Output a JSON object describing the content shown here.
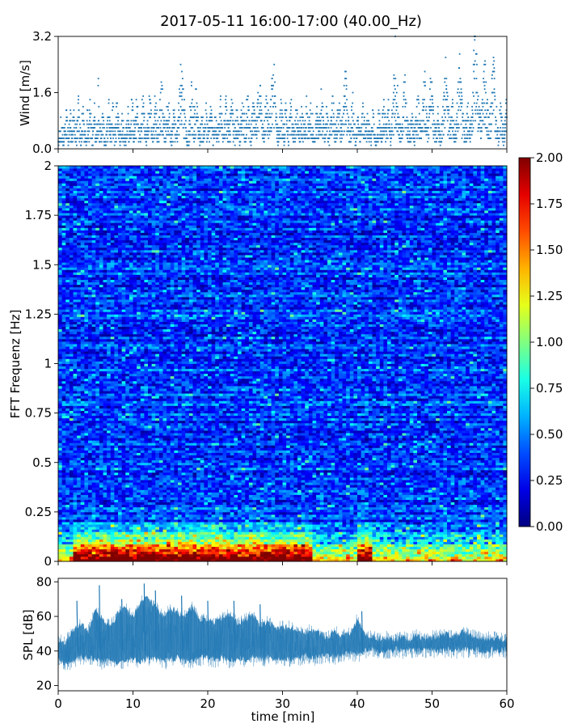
{
  "chart_data": [
    {
      "id": "wind",
      "type": "scatter",
      "title": "2017-05-11 16:00-17:00 (40.00_Hz)",
      "xlabel": "",
      "ylabel": "Wind [m/s]",
      "xlim": [
        0,
        60
      ],
      "ylim": [
        0,
        3.2
      ],
      "yticks": [
        0.0,
        1.6,
        3.2
      ],
      "ytick_labels": [
        "0.0",
        "1.6",
        "3.2"
      ],
      "xticks": [
        0,
        10,
        20,
        30,
        40,
        50,
        60
      ],
      "marker_color": "#1f77b4",
      "series": [
        {
          "x_start": 0,
          "x_end": 60,
          "resolution": 0.1,
          "values": [
            0.2,
            0.5,
            0.3,
            0.8,
            0.4,
            0.6,
            0.9,
            0.5,
            0.3,
            0.7,
            0.6,
            0.4,
            1.0,
            0.8,
            0.5,
            0.3,
            0.6,
            0.9,
            1.1,
            0.7,
            0.5,
            0.4,
            0.8,
            1.2,
            0.9,
            0.6,
            0.3,
            0.5,
            0.7,
            0.9,
            1.3,
            1.0,
            0.7,
            0.5,
            0.4,
            0.6,
            0.8,
            1.1,
            0.9,
            0.6,
            0.5,
            0.3,
            0.4,
            0.7,
            1.0,
            0.8,
            0.6,
            1.2,
            1.4,
            0.9,
            0.6,
            0.4,
            0.5,
            0.8,
            1.1,
            0.9,
            0.7,
            0.5,
            0.6,
            1.0,
            1.9,
            1.2,
            0.8,
            0.6,
            0.5,
            0.7,
            0.9,
            1.0,
            0.8,
            0.5,
            0.3,
            0.2,
            0.4,
            0.6,
            0.8,
            1.0,
            1.2,
            0.9,
            0.6,
            0.5,
            0.7,
            1.1,
            1.3,
            1.0,
            0.7,
            0.5,
            0.6,
            0.9,
            1.2,
            1.4,
            1.1,
            0.8,
            0.6,
            0.4,
            0.5,
            0.7,
            0.9,
            1.1,
            0.8,
            0.6,
            0.4,
            0.3,
            0.5,
            0.7,
            0.9,
            1.0,
            0.8,
            0.6,
            0.5,
            0.7,
            1.0,
            1.3,
            1.1,
            0.8,
            0.6,
            0.5,
            0.7,
            0.9,
            1.2,
            1.4,
            1.1,
            0.8,
            0.6,
            0.4,
            0.5,
            0.7,
            1.0,
            1.3,
            1.5,
            1.2,
            0.9,
            0.7,
            0.5,
            0.4,
            0.6,
            0.8,
            1.1,
            1.4,
            1.6,
            1.3,
            1.0,
            0.8,
            0.6,
            0.5,
            0.7,
            1.0,
            1.3,
            1.5,
            1.2,
            0.9,
            0.7,
            0.6,
            0.8,
            1.1,
            1.4,
            1.7,
            1.9,
            1.6,
            1.3,
            1.0,
            0.8,
            0.6,
            0.5,
            0.7,
            1.0,
            1.2,
            1.4,
            1.1,
            0.9,
            0.7,
            0.5,
            0.4,
            0.6,
            0.8,
            1.0,
            1.2,
            0.9,
            0.7,
            0.6,
            0.5,
            0.7,
            0.9,
            1.2,
            1.5,
            1.8,
            2.1,
            2.6,
            2.3,
            1.9,
            1.6,
            1.3,
            1.1,
            0.9,
            0.7,
            0.5,
            0.3,
            0.2,
            0.4,
            0.7,
            1.0,
            1.3,
            1.6,
            1.4,
            1.1,
            0.9,
            0.8,
            1.0,
            1.3,
            1.6,
            1.3,
            1.1,
            0.9,
            0.7,
            0.5,
            0.4,
            0.6,
            0.8,
            1.0,
            0.8,
            0.6,
            0.5,
            0.7,
            0.9,
            1.1,
            0.9,
            0.7,
            0.5,
            0.6,
            0.8,
            1.0,
            1.2,
            1.0,
            0.8,
            0.6,
            0.5,
            0.6,
            0.8,
            1.0,
            0.9,
            0.7,
            0.5,
            0.4,
            0.6,
            0.8,
            1.0,
            1.3,
            1.1,
            0.9,
            0.7,
            0.6,
            0.8,
            1.0,
            1.2,
            1.4,
            1.2,
            1.0,
            0.8,
            0.6,
            0.5,
            0.7,
            0.9,
            1.1,
            1.3,
            1.1,
            0.9,
            0.7,
            0.6,
            0.5,
            0.7,
            0.9,
            1.0,
            0.8,
            0.6,
            0.5,
            0.4,
            0.6,
            0.8,
            1.0,
            1.2,
            1.4,
            1.2,
            1.0,
            0.8,
            0.7,
            0.9,
            1.2,
            1.5,
            1.3,
            1.0,
            0.8,
            0.6,
            0.5,
            0.7,
            0.9,
            1.1,
            1.3,
            1.1,
            0.9,
            0.7,
            0.6,
            0.8,
            1.1,
            1.4,
            1.8,
            2.0,
            1.7,
            1.4,
            1.2,
            1.0,
            0.8,
            0.6,
            0.7,
            0.9,
            1.1,
            1.3,
            1.5,
            1.2,
            1.0,
            0.8,
            0.7,
            0.9,
            1.2,
            1.5,
            1.8,
            2.0,
            2.4,
            2.1,
            1.7,
            1.4,
            1.1,
            0.9,
            0.7,
            0.5,
            0.4,
            0.6,
            0.8,
            1.0,
            1.2,
            1.0,
            0.8,
            0.6,
            0.5,
            0.7,
            0.9,
            1.1,
            0.9,
            0.7,
            0.6,
            0.5,
            0.7,
            0.9,
            1.2,
            1.4,
            1.2,
            1.0,
            0.8,
            0.6,
            0.5,
            0.7,
            0.9,
            1.1,
            0.9,
            0.7,
            0.5,
            0.4,
            0.6,
            0.8,
            1.0,
            1.2,
            1.0,
            0.8,
            0.6,
            0.5,
            0.7,
            1.0,
            1.3,
            1.1,
            0.9,
            0.7,
            0.6,
            0.8,
            1.0,
            1.2,
            1.0,
            0.8,
            0.6,
            0.4,
            0.3,
            0.5,
            0.7,
            0.9,
            1.1,
            0.9,
            0.7,
            0.6,
            0.8,
            1.0,
            1.3,
            1.5,
            1.2,
            1.0,
            0.8,
            0.6,
            0.5,
            0.7,
            0.9,
            1.1,
            0.9,
            0.7,
            0.5,
            0.4,
            0.6,
            0.8,
            1.0,
            1.2,
            1.4,
            1.2,
            1.0,
            0.8,
            0.6,
            0.5,
            0.7,
            0.9,
            1.1,
            1.3,
            1.1,
            0.9,
            0.7,
            0.6,
            0.8,
            1.0,
            1.2,
            1.5,
            1.8,
            2.1,
            1.8,
            1.5,
            1.2,
            1.0,
            0.8,
            0.6,
            0.5,
            0.7,
            0.9,
            1.1,
            1.3,
            1.1,
            0.9,
            0.7,
            0.5,
            0.4,
            0.6,
            0.8,
            1.0,
            0.8,
            0.6,
            0.5,
            0.4,
            0.6,
            0.8,
            1.0,
            1.2,
            1.0,
            0.8,
            0.6,
            0.5,
            0.7,
            0.9,
            1.1,
            0.9,
            0.7,
            0.6,
            0.5,
            0.4,
            0.6,
            0.8,
            1.0,
            0.9,
            0.7,
            0.5,
            0.3,
            0.2,
            0.4,
            0.6,
            0.8,
            1.0,
            0.8,
            0.6,
            0.5,
            0.7,
            0.9,
            1.1,
            1.3,
            1.1,
            0.9,
            0.7,
            0.6,
            0.8,
            1.0,
            1.2,
            1.0,
            0.8,
            0.6,
            0.5,
            0.7,
            0.9,
            1.2,
            1.5,
            1.8,
            2.2,
            2.8,
            2.3,
            1.8,
            1.5,
            1.2,
            1.0,
            0.8,
            0.6,
            0.5,
            0.7,
            0.9,
            1.1,
            1.4,
            1.7,
            2.0,
            1.7,
            1.4,
            1.1,
            0.9,
            0.7,
            0.5,
            0.4,
            0.6,
            0.8,
            1.0,
            1.2,
            1.0,
            0.8,
            0.6,
            0.5,
            0.7,
            0.9,
            1.1,
            1.3,
            1.5,
            1.3,
            1.1,
            0.9,
            0.7,
            0.6,
            0.8,
            1.0,
            1.3,
            1.6,
            1.9,
            1.6,
            1.3,
            1.1,
            0.9,
            0.8,
            1.0,
            1.2,
            1.5,
            1.8,
            2.0,
            1.7,
            1.4,
            1.2,
            1.0,
            0.8,
            0.6,
            0.5,
            0.7,
            0.9,
            1.1,
            0.9,
            0.7,
            0.5,
            0.4,
            0.6,
            0.8,
            1.0,
            1.2,
            1.4,
            1.6,
            1.9,
            2.3,
            1.9,
            1.6,
            1.3,
            1.1,
            0.9,
            0.7,
            0.6,
            0.8,
            1.0,
            1.2,
            1.0,
            0.8,
            0.6,
            0.5,
            0.7,
            0.9,
            1.1,
            1.4,
            1.7,
            2.0,
            2.4,
            2.1,
            1.7,
            1.4,
            1.2,
            1.0,
            0.8,
            0.6,
            0.5,
            0.7,
            0.9,
            1.1,
            1.3,
            1.1,
            0.9,
            0.7,
            0.6,
            0.8,
            1.0,
            1.3,
            1.6,
            2.0,
            2.4,
            2.7,
            3.1,
            2.8,
            2.4,
            2.0,
            1.7,
            1.4,
            1.2,
            1.0,
            0.8,
            0.9,
            1.1,
            1.4,
            1.7,
            2.1,
            2.5,
            2.2,
            1.8,
            1.5,
            1.2,
            1.0,
            0.8,
            0.7,
            0.9,
            1.1,
            1.4,
            1.8,
            2.2,
            2.6,
            2.2,
            1.8,
            1.5,
            1.2,
            1.0,
            0.8,
            0.6,
            0.5,
            0.7,
            0.9,
            1.1,
            1.3,
            1.0,
            0.8,
            0.6,
            0.5,
            0.7,
            0.9,
            1.2,
            1.5
          ]
        }
      ]
    },
    {
      "id": "spectrogram",
      "type": "heatmap",
      "xlabel": "",
      "ylabel": "FFT Frequenz [Hz]",
      "xlim": [
        0,
        60
      ],
      "ylim": [
        0,
        2
      ],
      "yticks": [
        0,
        0.25,
        0.5,
        0.75,
        1,
        1.25,
        1.5,
        1.75,
        2
      ],
      "ytick_labels": [
        "0",
        "0.25",
        "0.5",
        "0.75",
        "1",
        "1.25",
        "1.5",
        "1.75",
        "2"
      ],
      "xticks": [
        0,
        10,
        20,
        30,
        40,
        50,
        60
      ],
      "colormap": "jet",
      "colorbar": {
        "vmin": 0,
        "vmax": 2,
        "ticks": [
          0.0,
          0.25,
          0.5,
          0.75,
          1.0,
          1.25,
          1.5,
          1.75,
          2.0
        ],
        "tick_labels": [
          "0.00",
          "0.25",
          "0.50",
          "0.75",
          "1.00",
          "1.25",
          "1.50",
          "1.75",
          "2.00"
        ]
      },
      "time_bins": 120,
      "freq_bins": 160,
      "typical_level": 0.35,
      "low_frequency_band": {
        "upper_hz": 0.2,
        "high_activity_minutes": [
          [
            2,
            34
          ],
          [
            40,
            42
          ]
        ],
        "peak_value": 2.0
      }
    },
    {
      "id": "spl",
      "type": "area",
      "xlabel": "time [min]",
      "ylabel": "SPL [dB]",
      "xlim": [
        0,
        60
      ],
      "ylim": [
        17,
        82
      ],
      "yticks": [
        20,
        40,
        60,
        80
      ],
      "ytick_labels": [
        "20",
        "40",
        "60",
        "80"
      ],
      "xticks": [
        0,
        10,
        20,
        30,
        40,
        50,
        60
      ],
      "xtick_labels": [
        "0",
        "10",
        "20",
        "30",
        "40",
        "50",
        "60"
      ],
      "color": "#1f77b4",
      "series": [
        {
          "x": [
            0,
            1,
            2,
            3,
            4,
            5,
            6,
            7,
            8,
            9,
            10,
            11,
            12,
            13,
            14,
            15,
            16,
            17,
            18,
            19,
            20,
            21,
            22,
            23,
            24,
            25,
            26,
            27,
            28,
            29,
            30,
            31,
            32,
            33,
            34,
            35,
            36,
            37,
            38,
            39,
            40,
            41,
            42,
            43,
            44,
            45,
            46,
            47,
            48,
            49,
            50,
            51,
            52,
            53,
            54,
            55,
            56,
            57,
            58,
            59,
            60
          ],
          "low": [
            30,
            28,
            29,
            32,
            31,
            30,
            29,
            31,
            28,
            30,
            30,
            29,
            31,
            30,
            29,
            30,
            31,
            29,
            30,
            31,
            31,
            30,
            31,
            29,
            31,
            30,
            31,
            30,
            31,
            30,
            31,
            30,
            31,
            32,
            31,
            32,
            33,
            32,
            33,
            34,
            33,
            35,
            36,
            35,
            35,
            36,
            35,
            36,
            35,
            36,
            36,
            35,
            36,
            35,
            36,
            35,
            36,
            35,
            36,
            35,
            36
          ],
          "high": [
            50,
            49,
            56,
            60,
            55,
            68,
            62,
            58,
            66,
            70,
            63,
            72,
            75,
            70,
            64,
            69,
            66,
            65,
            70,
            62,
            62,
            61,
            63,
            65,
            60,
            62,
            66,
            58,
            62,
            57,
            58,
            58,
            56,
            55,
            56,
            54,
            52,
            55,
            53,
            54,
            62,
            54,
            52,
            51,
            52,
            50,
            52,
            51,
            53,
            51,
            52,
            53,
            54,
            52,
            55,
            53,
            52,
            51,
            52,
            51,
            50
          ],
          "peaks": [
            [
              2.5,
              69
            ],
            [
              5.5,
              78
            ],
            [
              8.5,
              70
            ],
            [
              11.5,
              79
            ],
            [
              13,
              75
            ],
            [
              16.5,
              72
            ],
            [
              20,
              69
            ],
            [
              23.5,
              69
            ],
            [
              27,
              67
            ],
            [
              40.6,
              63
            ]
          ]
        }
      ]
    }
  ]
}
